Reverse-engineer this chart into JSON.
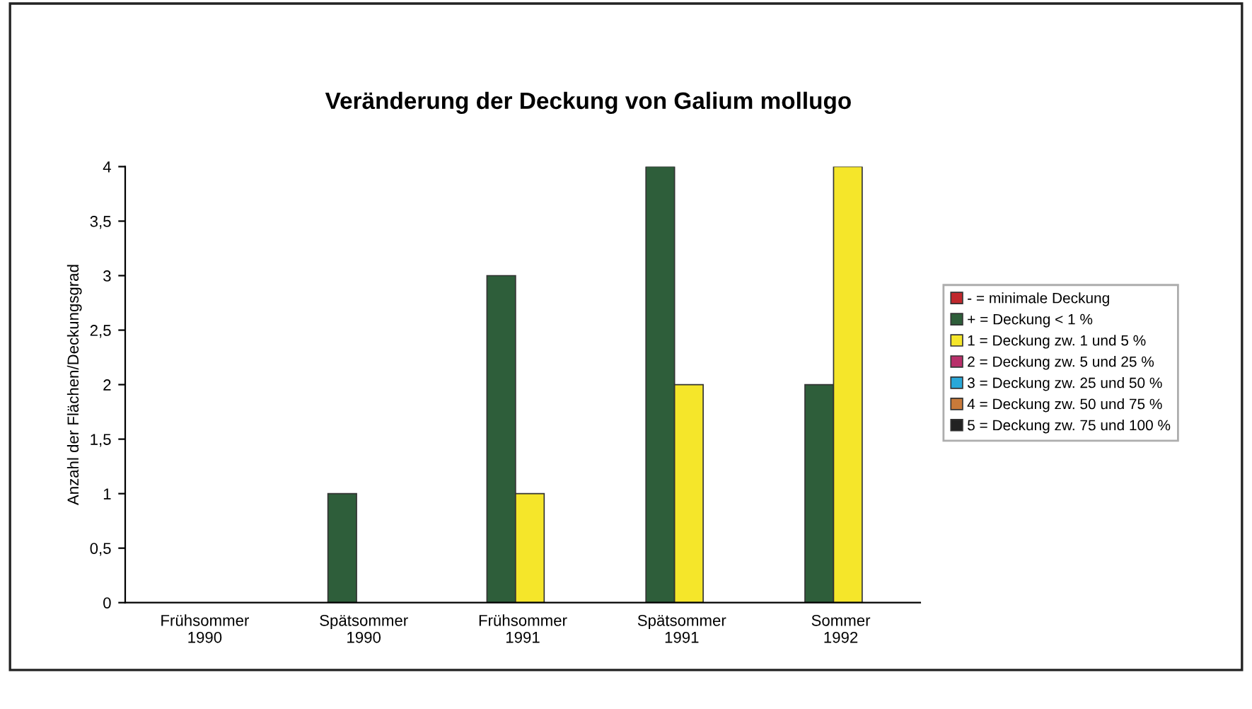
{
  "chart_data": {
    "type": "bar",
    "title": "Veränderung der Deckung von Galium mollugo",
    "ylabel": "Anzahl der Flächen/Deckungsgrad",
    "categories": [
      "Frühsommer\n1990",
      "Spätsommer\n1990",
      "Frühsommer\n1991",
      "Spätsommer\n1991",
      "Sommer\n1992"
    ],
    "series": [
      {
        "name": "- = minimale Deckung",
        "color": "#c0282d",
        "values": [
          null,
          null,
          null,
          null,
          null
        ]
      },
      {
        "name": "+ = Deckung < 1 %",
        "color": "#2e5e3a",
        "values": [
          null,
          1,
          3,
          4,
          2
        ]
      },
      {
        "name": "1 = Deckung zw. 1 und 5 %",
        "color": "#f5e62a",
        "values": [
          null,
          null,
          1,
          2,
          4
        ]
      },
      {
        "name": "2 = Deckung zw. 5 und 25 %",
        "color": "#b8306a",
        "values": [
          null,
          null,
          null,
          null,
          null
        ]
      },
      {
        "name": "3 = Deckung zw. 25 und 50 %",
        "color": "#2aa8d8",
        "values": [
          null,
          null,
          null,
          null,
          null
        ]
      },
      {
        "name": "4 = Deckung zw. 50 und 75 %",
        "color": "#c87a3a",
        "values": [
          null,
          null,
          null,
          null,
          null
        ]
      },
      {
        "name": "5 = Deckung zw. 75 und 100 %",
        "color": "#222222",
        "values": [
          null,
          null,
          null,
          null,
          null
        ]
      }
    ],
    "ylim": [
      0,
      4
    ],
    "yticks": [
      0,
      {
        "value": 0.5,
        "label": "0,5"
      },
      1,
      {
        "value": 1.5,
        "label": "1,5"
      },
      2,
      {
        "value": 2.5,
        "label": "2,5"
      },
      3,
      {
        "value": 3.5,
        "label": "3,5"
      },
      4
    ],
    "grid": false,
    "legend": "right"
  }
}
